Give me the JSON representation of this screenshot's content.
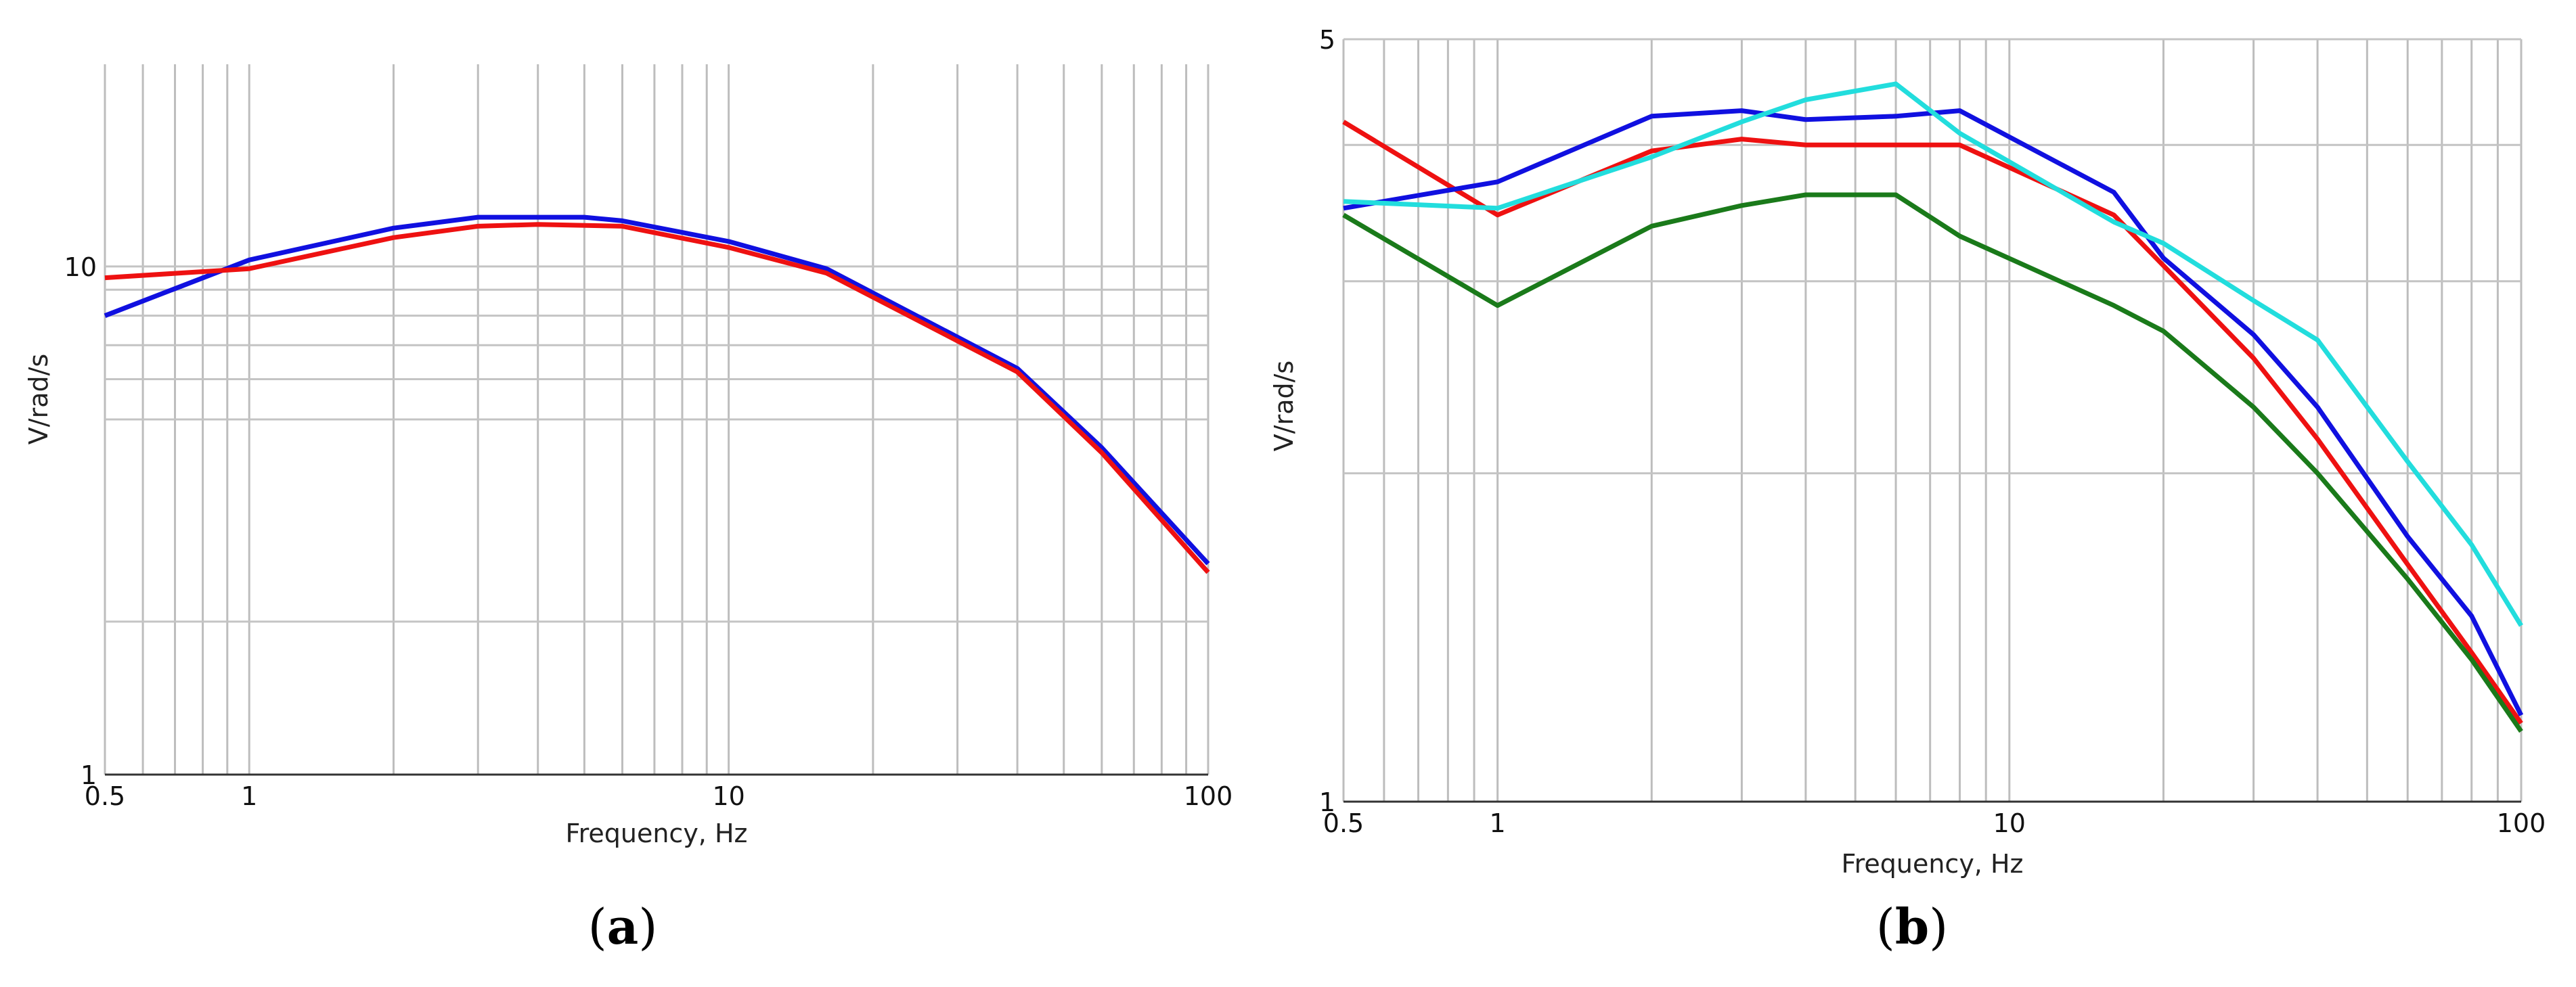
{
  "chart_data": [
    {
      "type": "line",
      "panel_label": "a",
      "xlabel": "Frequency, Hz",
      "ylabel": "V/rad/s",
      "x_scale": "log",
      "y_scale": "log",
      "xlim": [
        0.5,
        100
      ],
      "ylim": [
        1,
        25
      ],
      "grid": true,
      "x_ticks": [
        {
          "v": 0.5,
          "label": "0.5"
        },
        {
          "v": 1,
          "label": "1"
        },
        {
          "v": 10,
          "label": "10"
        },
        {
          "v": 100,
          "label": "100"
        }
      ],
      "y_ticks": [
        {
          "v": 1,
          "label": "1"
        },
        {
          "v": 10,
          "label": "10"
        }
      ],
      "x_grid": [
        0.5,
        0.6,
        0.7,
        0.8,
        0.9,
        1,
        2,
        3,
        4,
        5,
        6,
        7,
        8,
        9,
        10,
        20,
        30,
        40,
        50,
        60,
        70,
        80,
        90,
        100
      ],
      "y_grid": [
        2,
        5,
        6,
        7,
        8,
        9
      ],
      "series": [
        {
          "color": "#1010e0",
          "x": [
            0.5,
            1,
            2,
            3,
            5,
            6,
            10,
            16,
            40,
            60,
            100
          ],
          "y": [
            8.0,
            10.3,
            11.9,
            12.5,
            12.5,
            12.3,
            11.2,
            9.9,
            6.3,
            4.4,
            2.6
          ]
        },
        {
          "color": "#ee1111",
          "x": [
            0.5,
            1,
            2,
            3,
            4,
            6,
            10,
            16,
            40,
            60,
            100
          ],
          "y": [
            9.5,
            9.9,
            11.4,
            12.0,
            12.1,
            12.0,
            10.9,
            9.7,
            6.2,
            4.3,
            2.5
          ]
        }
      ]
    },
    {
      "type": "line",
      "panel_label": "b",
      "xlabel": "Frequency, Hz",
      "ylabel": "V/rad/s",
      "x_scale": "log",
      "y_scale": "log",
      "xlim": [
        0.5,
        100
      ],
      "ylim": [
        1,
        5
      ],
      "grid": true,
      "x_ticks": [
        {
          "v": 0.5,
          "label": "0.5"
        },
        {
          "v": 1,
          "label": "1"
        },
        {
          "v": 10,
          "label": "10"
        },
        {
          "v": 100,
          "label": "100"
        }
      ],
      "y_ticks": [
        {
          "v": 1,
          "label": "1"
        },
        {
          "v": 5,
          "label": "5"
        }
      ],
      "x_grid": [
        0.5,
        0.6,
        0.7,
        0.8,
        0.9,
        1,
        2,
        3,
        4,
        5,
        6,
        7,
        8,
        9,
        10,
        20,
        30,
        40,
        50,
        60,
        70,
        80,
        90,
        100
      ],
      "y_grid": [
        2,
        3,
        4
      ],
      "series": [
        {
          "color": "#ee1111",
          "x": [
            0.5,
            1,
            2,
            3,
            4,
            6,
            8,
            16,
            20,
            30,
            40,
            60,
            80,
            100
          ],
          "y": [
            4.2,
            3.45,
            3.95,
            4.05,
            4.0,
            4.0,
            4.0,
            3.45,
            3.1,
            2.55,
            2.15,
            1.65,
            1.37,
            1.18
          ]
        },
        {
          "color": "#1010e0",
          "x": [
            0.5,
            1,
            2,
            3,
            4,
            6,
            8,
            16,
            20,
            30,
            40,
            60,
            80,
            100
          ],
          "y": [
            3.5,
            3.7,
            4.25,
            4.3,
            4.22,
            4.25,
            4.3,
            3.62,
            3.15,
            2.68,
            2.3,
            1.75,
            1.48,
            1.2
          ]
        },
        {
          "color": "#22dddd",
          "x": [
            0.5,
            1,
            2,
            3,
            4,
            6,
            8,
            16,
            20,
            30,
            40,
            60,
            80,
            100
          ],
          "y": [
            3.55,
            3.5,
            3.9,
            4.2,
            4.4,
            4.55,
            4.1,
            3.4,
            3.25,
            2.88,
            2.65,
            2.05,
            1.72,
            1.45
          ]
        },
        {
          "color": "#1a7a1a",
          "x": [
            0.5,
            1,
            2,
            3,
            4,
            6,
            8,
            16,
            20,
            30,
            40,
            60,
            80,
            100
          ],
          "y": [
            3.45,
            2.85,
            3.37,
            3.52,
            3.6,
            3.6,
            3.3,
            2.85,
            2.7,
            2.3,
            2.0,
            1.6,
            1.35,
            1.16
          ]
        }
      ]
    }
  ]
}
